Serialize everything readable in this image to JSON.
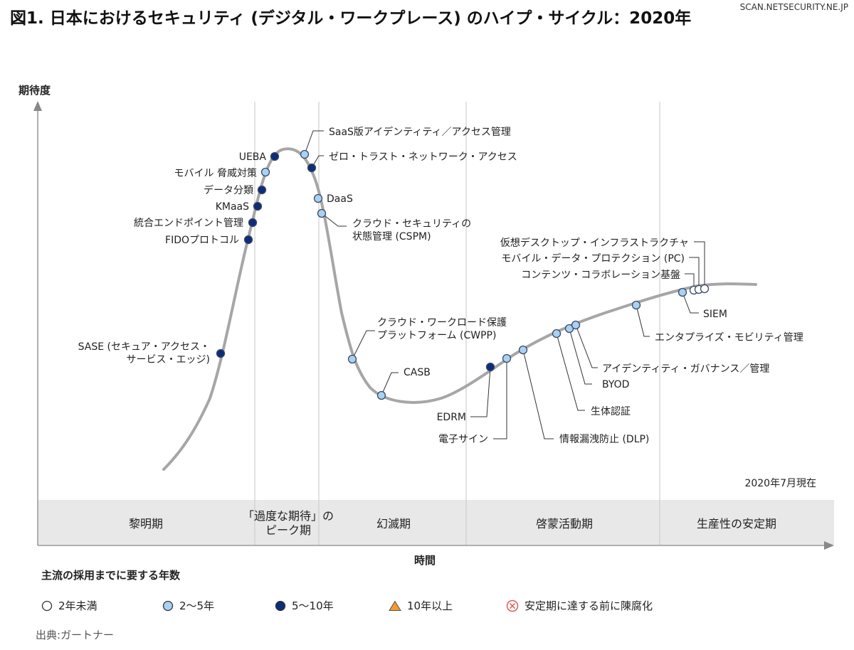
{
  "title": "図1. 日本におけるセキュリティ (デジタル・ワークプレース) のハイプ・サイクル：2020年",
  "site_credit": "SCAN.NETSECURITY.NE.JP",
  "as_of": "2020年7月現在",
  "source": "出典:ガートナー",
  "colors": {
    "curve": "#a6a6a6",
    "dot_2_5": "#a9d2f2",
    "dot_5_10": "#0d2d7a",
    "dot_lt2": "#ffffff",
    "triangle": "#f29a2e",
    "obsolete": "#e05a5a",
    "band": "#e8e8e8"
  },
  "legend": {
    "title": "主流の採用までに要する年数",
    "items": [
      {
        "label": "2年未満",
        "marker": "circle-white"
      },
      {
        "label": "2〜5年",
        "marker": "circle-light-blue"
      },
      {
        "label": "5〜10年",
        "marker": "circle-dark-blue"
      },
      {
        "label": "10年以上",
        "marker": "triangle-orange"
      },
      {
        "label": "安定期に達する前に陳腐化",
        "marker": "circle-x-red"
      }
    ]
  },
  "chart_data": {
    "type": "line",
    "ylabel": "期待度",
    "xlabel": "時間",
    "phases": [
      "黎明期",
      "「過度な期待」の\nピーク期",
      "幻滅期",
      "啓蒙活動期",
      "生産性の安定期"
    ],
    "points": [
      {
        "name": "SASE (セキュア・アクセス・\nサービス・エッジ)",
        "years": "5〜10年",
        "phase": "黎明期"
      },
      {
        "name": "FIDOプロトコル",
        "years": "5〜10年",
        "phase": "黎明期"
      },
      {
        "name": "統合エンドポイント管理",
        "years": "5〜10年",
        "phase": "黎明期"
      },
      {
        "name": "KMaaS",
        "years": "5〜10年",
        "phase": "黎明期"
      },
      {
        "name": "データ分類",
        "years": "5〜10年",
        "phase": "黎明期"
      },
      {
        "name": "モバイル 脅威対策",
        "years": "2〜5年",
        "phase": "「過度な期待」のピーク期"
      },
      {
        "name": "UEBA",
        "years": "5〜10年",
        "phase": "「過度な期待」のピーク期"
      },
      {
        "name": "SaaS版アイデンティティ／アクセス管理",
        "years": "2〜5年",
        "phase": "「過度な期待」のピーク期"
      },
      {
        "name": "ゼロ・トラスト・ネットワーク・アクセス",
        "years": "5〜10年",
        "phase": "幻滅期"
      },
      {
        "name": "DaaS",
        "years": "2〜5年",
        "phase": "幻滅期"
      },
      {
        "name": "クラウド・セキュリティの\n状態管理 (CSPM)",
        "years": "2〜5年",
        "phase": "幻滅期"
      },
      {
        "name": "クラウド・ワークロード保護\nプラットフォーム (CWPP)",
        "years": "2〜5年",
        "phase": "幻滅期"
      },
      {
        "name": "CASB",
        "years": "2〜5年",
        "phase": "幻滅期"
      },
      {
        "name": "EDRM",
        "years": "5〜10年",
        "phase": "啓蒙活動期"
      },
      {
        "name": "電子サイン",
        "years": "2〜5年",
        "phase": "啓蒙活動期"
      },
      {
        "name": "情報漏洩防止 (DLP)",
        "years": "2〜5年",
        "phase": "啓蒙活動期"
      },
      {
        "name": "生体認証",
        "years": "2〜5年",
        "phase": "啓蒙活動期"
      },
      {
        "name": "BYOD",
        "years": "2〜5年",
        "phase": "啓蒙活動期"
      },
      {
        "name": "アイデンティティ・ガバナンス／管理",
        "years": "2〜5年",
        "phase": "啓蒙活動期"
      },
      {
        "name": "エンタプライズ・モビリティ管理",
        "years": "2〜5年",
        "phase": "生産性の安定期"
      },
      {
        "name": "SIEM",
        "years": "2〜5年",
        "phase": "生産性の安定期"
      },
      {
        "name": "コンテンツ・コラボレーション基盤",
        "years": "2年未満",
        "phase": "生産性の安定期"
      },
      {
        "name": "モバイル・データ・プロテクション (PC)",
        "years": "2年未満",
        "phase": "生産性の安定期"
      },
      {
        "name": "仮想デスクトップ・インフラストラクチャ",
        "years": "2年未満",
        "phase": "生産性の安定期"
      }
    ]
  }
}
